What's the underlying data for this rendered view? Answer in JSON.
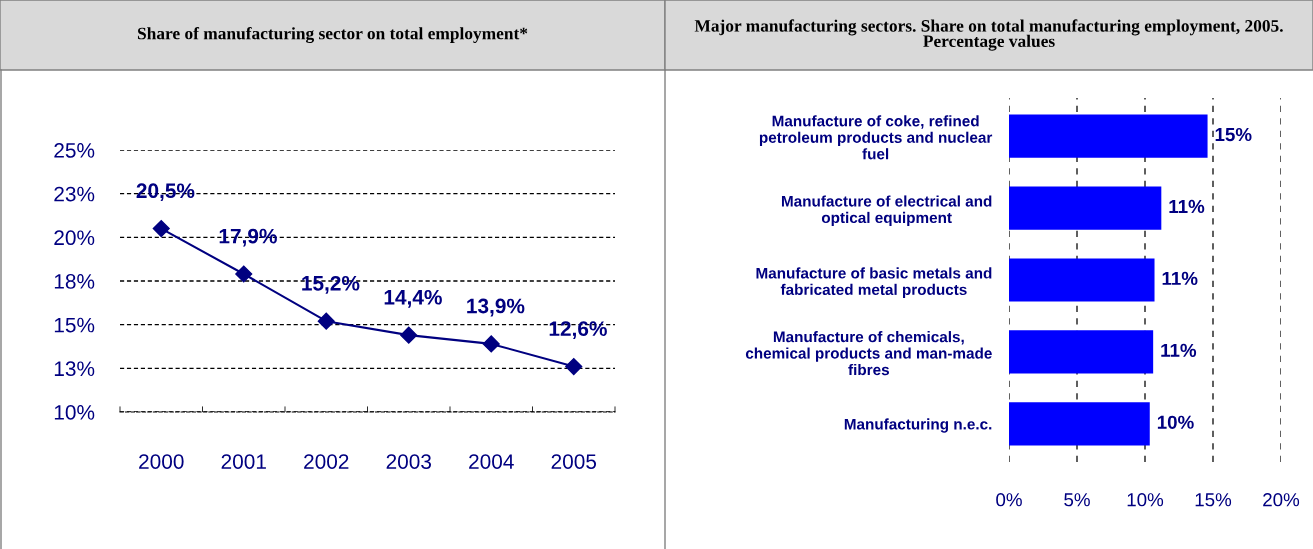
{
  "chart_data": [
    {
      "type": "line",
      "title": "Share of manufacturing sector on total employment*",
      "categories": [
        "2000",
        "2001",
        "2002",
        "2003",
        "2004",
        "2005"
      ],
      "series": [
        {
          "color": "#000080",
          "values": [
            20.5,
            17.9,
            15.2,
            14.4,
            13.9,
            12.6
          ],
          "value_labels": [
            "20,5%",
            "17,9%",
            "15,2%",
            "14,4%",
            "13,9%",
            "12,6%"
          ]
        }
      ],
      "ylim": [
        10,
        25
      ],
      "yticks": [
        {
          "value": 10,
          "label": "10%"
        },
        {
          "value": 12.5,
          "label": "13%"
        },
        {
          "value": 15,
          "label": "15%"
        },
        {
          "value": 17.5,
          "label": "18%"
        },
        {
          "value": 20,
          "label": "20%"
        },
        {
          "value": 22.5,
          "label": "23%"
        },
        {
          "value": 25,
          "label": "25%"
        }
      ],
      "grid": "y",
      "marker": "diamond",
      "line_style": "solid"
    },
    {
      "type": "bar",
      "orientation": "horizontal",
      "title": "Major manufacturing sectors. Share on total manufacturing employment, 2005. Percentage values",
      "categories": [
        "Manufacture of coke, refined\npetroleum products and nuclear\nfuel",
        "Manufacture of electrical and\noptical equipment",
        "Manufacture of basic metals and\nfabricated metal products",
        "Manufacture of chemicals,\nchemical products and man-made\nfibres",
        "Manufacturing n.e.c."
      ],
      "values": [
        14.6,
        11.2,
        10.7,
        10.6,
        10.35
      ],
      "value_labels": [
        "15%",
        "11%",
        "11%",
        "11%",
        "10%"
      ],
      "color": "#0000ff",
      "xlim": [
        0,
        20
      ],
      "xticks": [
        {
          "value": 0,
          "label": "0%"
        },
        {
          "value": 5,
          "label": "5%"
        },
        {
          "value": 10,
          "label": "10%"
        },
        {
          "value": 15,
          "label": "15%"
        },
        {
          "value": 20,
          "label": "20%"
        }
      ],
      "grid": "x"
    }
  ]
}
